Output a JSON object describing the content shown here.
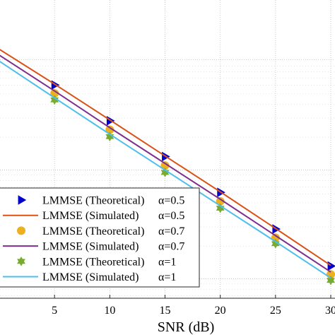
{
  "chart_data": {
    "type": "line",
    "xlabel": "SNR (dB)",
    "ylabel": "",
    "x_ticks": [
      5,
      10,
      15,
      20,
      25,
      30
    ],
    "xlim": [
      0,
      30
    ],
    "ylim": [
      0,
      1
    ],
    "yscale": "log",
    "grid": true,
    "legend_position": "bottom-left",
    "series": [
      {
        "name": "LMMSE (Theoretical) α=0.5",
        "label_text": "LMMSE (Theoretical)",
        "label_alpha": "α=0.5",
        "kind": "marker",
        "marker": "triangle-right",
        "color": "#0000cc",
        "x": [
          5,
          10,
          15,
          20,
          25,
          30
        ],
        "y": [
          0.715,
          0.595,
          0.475,
          0.355,
          0.232,
          0.108
        ]
      },
      {
        "name": "LMMSE (Simulated) α=0.5",
        "label_text": "LMMSE (Simulated)",
        "label_alpha": "α=0.5",
        "kind": "line",
        "color": "#d95319",
        "x": [
          0,
          5,
          10,
          15,
          20,
          25,
          30
        ],
        "y": [
          0.835,
          0.718,
          0.598,
          0.477,
          0.357,
          0.234,
          0.11
        ]
      },
      {
        "name": "LMMSE (Theoretical) α=0.7",
        "label_text": "LMMSE (Theoretical)",
        "label_alpha": "α=0.7",
        "kind": "marker",
        "marker": "circle",
        "color": "#edb120",
        "x": [
          5,
          10,
          15,
          20,
          25,
          30
        ],
        "y": [
          0.687,
          0.565,
          0.445,
          0.325,
          0.203,
          0.08
        ]
      },
      {
        "name": "LMMSE (Simulated) α=0.7",
        "label_text": "LMMSE (Simulated)",
        "label_alpha": "α=0.7",
        "kind": "line",
        "color": "#7e2f8e",
        "x": [
          0,
          5,
          10,
          15,
          20,
          25,
          30
        ],
        "y": [
          0.815,
          0.695,
          0.572,
          0.452,
          0.332,
          0.21,
          0.088
        ]
      },
      {
        "name": "LMMSE (Theoretical) α=1",
        "label_text": "LMMSE (Theoretical)",
        "label_alpha": "α=1",
        "kind": "marker",
        "marker": "hexagram",
        "color": "#77ac30",
        "x": [
          5,
          10,
          15,
          20,
          25,
          30
        ],
        "y": [
          0.665,
          0.542,
          0.422,
          0.302,
          0.183,
          0.06
        ]
      },
      {
        "name": "LMMSE (Simulated) α=1",
        "label_text": "LMMSE (Simulated)",
        "label_alpha": "α=1",
        "kind": "line",
        "color": "#4dbeee",
        "x": [
          0,
          5,
          10,
          15,
          20,
          25,
          30
        ],
        "y": [
          0.795,
          0.672,
          0.55,
          0.43,
          0.31,
          0.19,
          0.068
        ]
      }
    ]
  }
}
